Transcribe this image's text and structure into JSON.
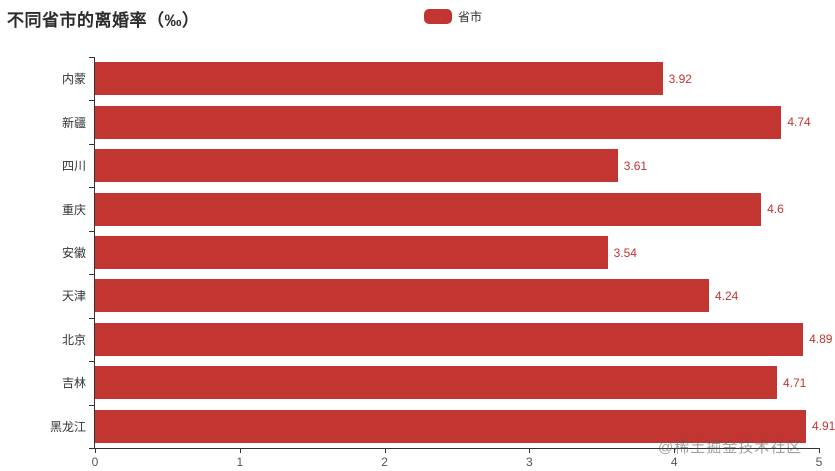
{
  "title": "不同省市的离婚率（‰）",
  "legend": {
    "label": "省市",
    "color": "#c23531"
  },
  "watermark": "@稀土掘金技术社区",
  "colors": {
    "bar": "#c23531",
    "value_label": "#c23531",
    "axis": "#333333",
    "tick_label": "#555555",
    "category_label": "#333333"
  },
  "chart_data": {
    "type": "bar",
    "orientation": "horizontal",
    "title": "不同省市的离婚率（‰）",
    "series_name": "省市",
    "categories": [
      "内蒙",
      "新疆",
      "四川",
      "重庆",
      "安徽",
      "天津",
      "北京",
      "吉林",
      "黑龙江"
    ],
    "values": [
      3.92,
      4.74,
      3.61,
      4.6,
      3.54,
      4.24,
      4.89,
      4.71,
      4.91
    ],
    "xlabel": "",
    "ylabel": "",
    "xlim": [
      0,
      5
    ],
    "x_ticks": [
      0,
      1,
      2,
      3,
      4,
      5
    ],
    "grid": false,
    "legend_position": "top-center",
    "value_labels_shown": true
  }
}
